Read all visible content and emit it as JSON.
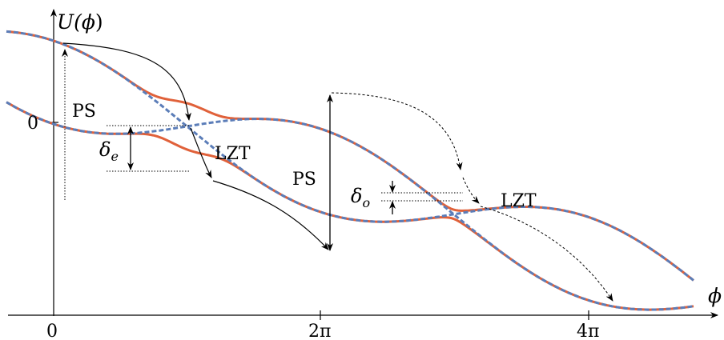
{
  "axis": {
    "y_label_main": "U(",
    "y_label_var": "ϕ",
    "y_label_close": ")",
    "x_label": "ϕ",
    "y_tick_zero": "0"
  },
  "x_ticks": [
    {
      "label": "0",
      "value": 0
    },
    {
      "label": "2π",
      "value": 6.2832
    },
    {
      "label": "4π",
      "value": 12.5664
    }
  ],
  "annotations": {
    "ps_left": "PS",
    "ps_middle": "PS",
    "lzt_left": "LZT",
    "lzt_right": "LZT",
    "delta_e_symbol": "δ",
    "delta_e_sub": "e",
    "delta_o_symbol": "δ",
    "delta_o_sub": "o"
  },
  "colors": {
    "adiabatic_curve": "#e0613a",
    "diabatic_curve": "#5b7db8",
    "arrows": "#000000"
  }
}
